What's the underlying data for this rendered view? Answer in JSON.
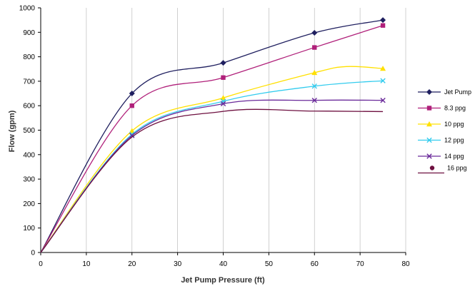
{
  "chart_data": {
    "type": "line",
    "title": "",
    "xlabel": "Jet Pump  Pressure (ft)",
    "ylabel": "Flow (gpm)",
    "xlim": [
      0,
      80
    ],
    "ylim": [
      0,
      1000
    ],
    "xticks": [
      0,
      10,
      20,
      30,
      40,
      50,
      60,
      70,
      80
    ],
    "yticks": [
      0,
      100,
      200,
      300,
      400,
      500,
      600,
      700,
      800,
      900,
      1000
    ],
    "grid": "vertical",
    "legend_position": "right",
    "series": [
      {
        "name": "Jet Pump",
        "color": "#1f1f5f",
        "marker": "diamond",
        "x": [
          0,
          20,
          40,
          60,
          75
        ],
        "y": [
          0,
          650,
          775,
          898,
          950
        ]
      },
      {
        "name": "8.3 ppg",
        "color": "#b0207a",
        "marker": "square",
        "x": [
          0,
          20,
          40,
          60,
          75
        ],
        "y": [
          0,
          600,
          715,
          838,
          928
        ]
      },
      {
        "name": "10 ppg",
        "color": "#ffe000",
        "marker": "triangle",
        "x": [
          0,
          20,
          40,
          60,
          67,
          75
        ],
        "y": [
          0,
          497,
          632,
          735,
          760,
          752
        ]
      },
      {
        "name": "12 ppg",
        "color": "#33ccee",
        "marker": "x",
        "x": [
          0,
          20,
          40,
          60,
          75
        ],
        "y": [
          0,
          483,
          618,
          680,
          702
        ]
      },
      {
        "name": "14 ppg",
        "color": "#6a2a9a",
        "marker": "x",
        "x": [
          0,
          20,
          40,
          60,
          75
        ],
        "y": [
          0,
          478,
          608,
          622,
          622
        ]
      },
      {
        "name": "16 ppg",
        "color": "#6e1040",
        "marker": "none",
        "x": [
          0,
          20,
          40,
          60,
          75
        ],
        "y": [
          0,
          472,
          577,
          578,
          576
        ]
      }
    ]
  }
}
